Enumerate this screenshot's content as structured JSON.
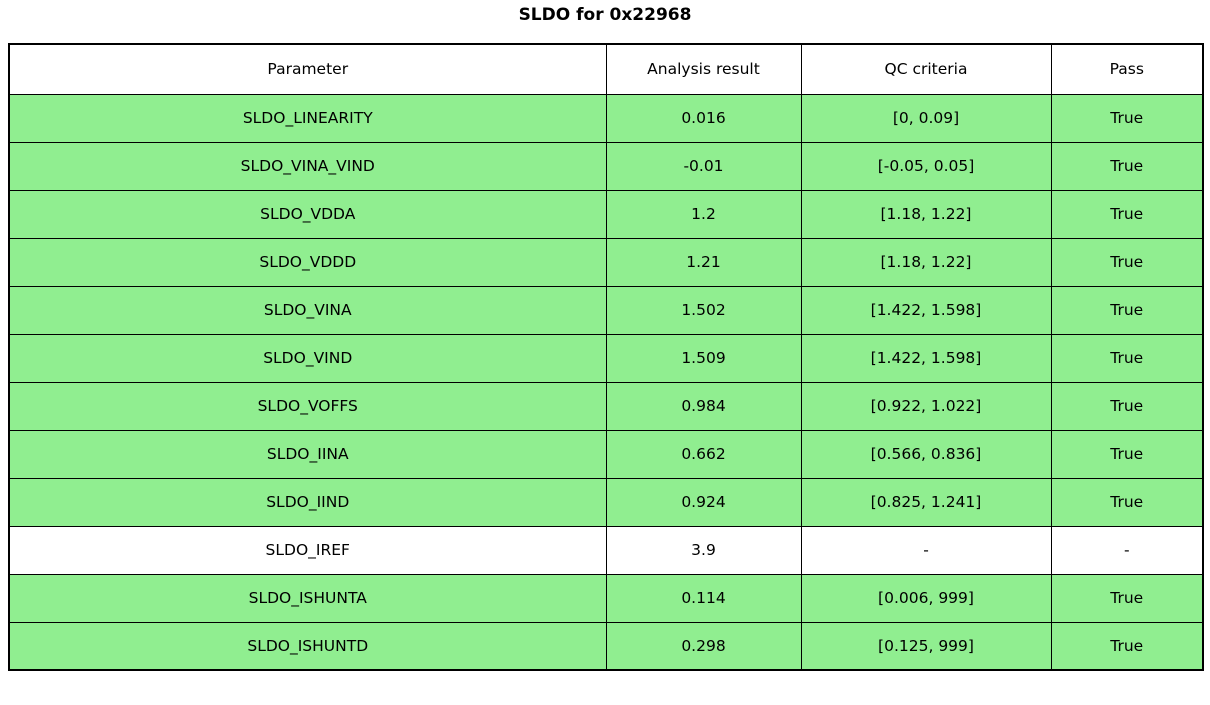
{
  "title": "SLDO for 0x22968",
  "colors": {
    "pass_row_green": "#90EE90",
    "neutral_row_white": "#FFFFFF",
    "border_black": "#000000",
    "text_black": "#000000",
    "background": "#FFFFFF"
  },
  "chart_data": {
    "type": "table",
    "title": "SLDO for 0x22968",
    "columns": [
      "Parameter",
      "Analysis result",
      "QC criteria",
      "Pass"
    ],
    "rows": [
      {
        "parameter": "SLDO_LINEARITY",
        "analysis_result": "0.016",
        "qc_criteria": "[0, 0.09]",
        "pass": "True",
        "row_color": "#90EE90"
      },
      {
        "parameter": "SLDO_VINA_VIND",
        "analysis_result": "-0.01",
        "qc_criteria": "[-0.05, 0.05]",
        "pass": "True",
        "row_color": "#90EE90"
      },
      {
        "parameter": "SLDO_VDDA",
        "analysis_result": "1.2",
        "qc_criteria": "[1.18, 1.22]",
        "pass": "True",
        "row_color": "#90EE90"
      },
      {
        "parameter": "SLDO_VDDD",
        "analysis_result": "1.21",
        "qc_criteria": "[1.18, 1.22]",
        "pass": "True",
        "row_color": "#90EE90"
      },
      {
        "parameter": "SLDO_VINA",
        "analysis_result": "1.502",
        "qc_criteria": "[1.422, 1.598]",
        "pass": "True",
        "row_color": "#90EE90"
      },
      {
        "parameter": "SLDO_VIND",
        "analysis_result": "1.509",
        "qc_criteria": "[1.422, 1.598]",
        "pass": "True",
        "row_color": "#90EE90"
      },
      {
        "parameter": "SLDO_VOFFS",
        "analysis_result": "0.984",
        "qc_criteria": "[0.922, 1.022]",
        "pass": "True",
        "row_color": "#90EE90"
      },
      {
        "parameter": "SLDO_IINA",
        "analysis_result": "0.662",
        "qc_criteria": "[0.566, 0.836]",
        "pass": "True",
        "row_color": "#90EE90"
      },
      {
        "parameter": "SLDO_IIND",
        "analysis_result": "0.924",
        "qc_criteria": "[0.825, 1.241]",
        "pass": "True",
        "row_color": "#90EE90"
      },
      {
        "parameter": "SLDO_IREF",
        "analysis_result": "3.9",
        "qc_criteria": "-",
        "pass": "-",
        "row_color": "#FFFFFF"
      },
      {
        "parameter": "SLDO_ISHUNTA",
        "analysis_result": "0.114",
        "qc_criteria": "[0.006, 999]",
        "pass": "True",
        "row_color": "#90EE90"
      },
      {
        "parameter": "SLDO_ISHUNTD",
        "analysis_result": "0.298",
        "qc_criteria": "[0.125, 999]",
        "pass": "True",
        "row_color": "#90EE90"
      }
    ]
  }
}
